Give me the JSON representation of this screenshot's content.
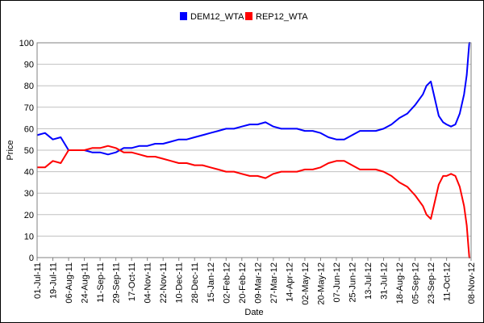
{
  "chart_data": {
    "type": "line",
    "title": "",
    "xlabel": "Date",
    "ylabel": "Price",
    "ylim": [
      0,
      100
    ],
    "yticks": [
      0,
      10,
      20,
      30,
      40,
      50,
      60,
      70,
      80,
      90,
      100
    ],
    "grid": true,
    "legend_position": "top-center",
    "x_tick_labels": [
      "01-Jul-11",
      "19-Jul-11",
      "06-Aug-11",
      "24-Aug-11",
      "11-Sep-11",
      "29-Sep-11",
      "17-Oct-11",
      "04-Nov-11",
      "22-Nov-11",
      "10-Dec-11",
      "28-Dec-11",
      "15-Jan-12",
      "02-Feb-12",
      "20-Feb-12",
      "09-Mar-12",
      "27-Mar-12",
      "14-Apr-12",
      "02-May-12",
      "20-May-12",
      "07-Jun-12",
      "25-Jun-12",
      "13-Jul-12",
      "31-Jul-12",
      "18-Aug-12",
      "05-Sep-12",
      "23-Sep-12",
      "11-Oct-12",
      "08-Nov-12"
    ],
    "x": [
      "01-Jul-11",
      "10-Jul-11",
      "19-Jul-11",
      "28-Jul-11",
      "06-Aug-11",
      "15-Aug-11",
      "24-Aug-11",
      "02-Sep-11",
      "11-Sep-11",
      "20-Sep-11",
      "29-Sep-11",
      "08-Oct-11",
      "17-Oct-11",
      "26-Oct-11",
      "04-Nov-11",
      "13-Nov-11",
      "22-Nov-11",
      "01-Dec-11",
      "10-Dec-11",
      "19-Dec-11",
      "28-Dec-11",
      "06-Jan-12",
      "15-Jan-12",
      "24-Jan-12",
      "02-Feb-12",
      "11-Feb-12",
      "20-Feb-12",
      "29-Feb-12",
      "09-Mar-12",
      "18-Mar-12",
      "27-Mar-12",
      "05-Apr-12",
      "14-Apr-12",
      "23-Apr-12",
      "02-May-12",
      "11-May-12",
      "20-May-12",
      "29-May-12",
      "07-Jun-12",
      "16-Jun-12",
      "25-Jun-12",
      "04-Jul-12",
      "13-Jul-12",
      "22-Jul-12",
      "31-Jul-12",
      "09-Aug-12",
      "18-Aug-12",
      "27-Aug-12",
      "05-Sep-12",
      "14-Sep-12",
      "18-Sep-12",
      "23-Sep-12",
      "27-Sep-12",
      "02-Oct-12",
      "07-Oct-12",
      "11-Oct-12",
      "16-Oct-12",
      "21-Oct-12",
      "26-Oct-12",
      "31-Oct-12",
      "03-Nov-12",
      "05-Nov-12",
      "06-Nov-12",
      "07-Nov-12"
    ],
    "series": [
      {
        "name": "DEM12_WTA",
        "color": "#0000ff",
        "values": [
          57,
          58,
          55,
          56,
          50,
          50,
          50,
          49,
          49,
          48,
          49,
          51,
          51,
          52,
          52,
          53,
          53,
          54,
          55,
          55,
          56,
          57,
          58,
          59,
          60,
          60,
          61,
          62,
          62,
          63,
          61,
          60,
          60,
          60,
          59,
          59,
          58,
          56,
          55,
          55,
          57,
          59,
          59,
          59,
          60,
          62,
          65,
          67,
          71,
          76,
          80,
          82,
          75,
          66,
          63,
          62,
          61,
          62,
          67,
          76,
          85,
          95,
          100,
          100
        ]
      },
      {
        "name": "REP12_WTA",
        "color": "#ff0000",
        "values": [
          42,
          42,
          45,
          44,
          50,
          50,
          50,
          51,
          51,
          52,
          51,
          49,
          49,
          48,
          47,
          47,
          46,
          45,
          44,
          44,
          43,
          43,
          42,
          41,
          40,
          40,
          39,
          38,
          38,
          37,
          39,
          40,
          40,
          40,
          41,
          41,
          42,
          44,
          45,
          45,
          43,
          41,
          41,
          41,
          40,
          38,
          35,
          33,
          29,
          24,
          20,
          18,
          25,
          34,
          38,
          38,
          39,
          38,
          33,
          24,
          15,
          5,
          0,
          0
        ]
      }
    ]
  }
}
